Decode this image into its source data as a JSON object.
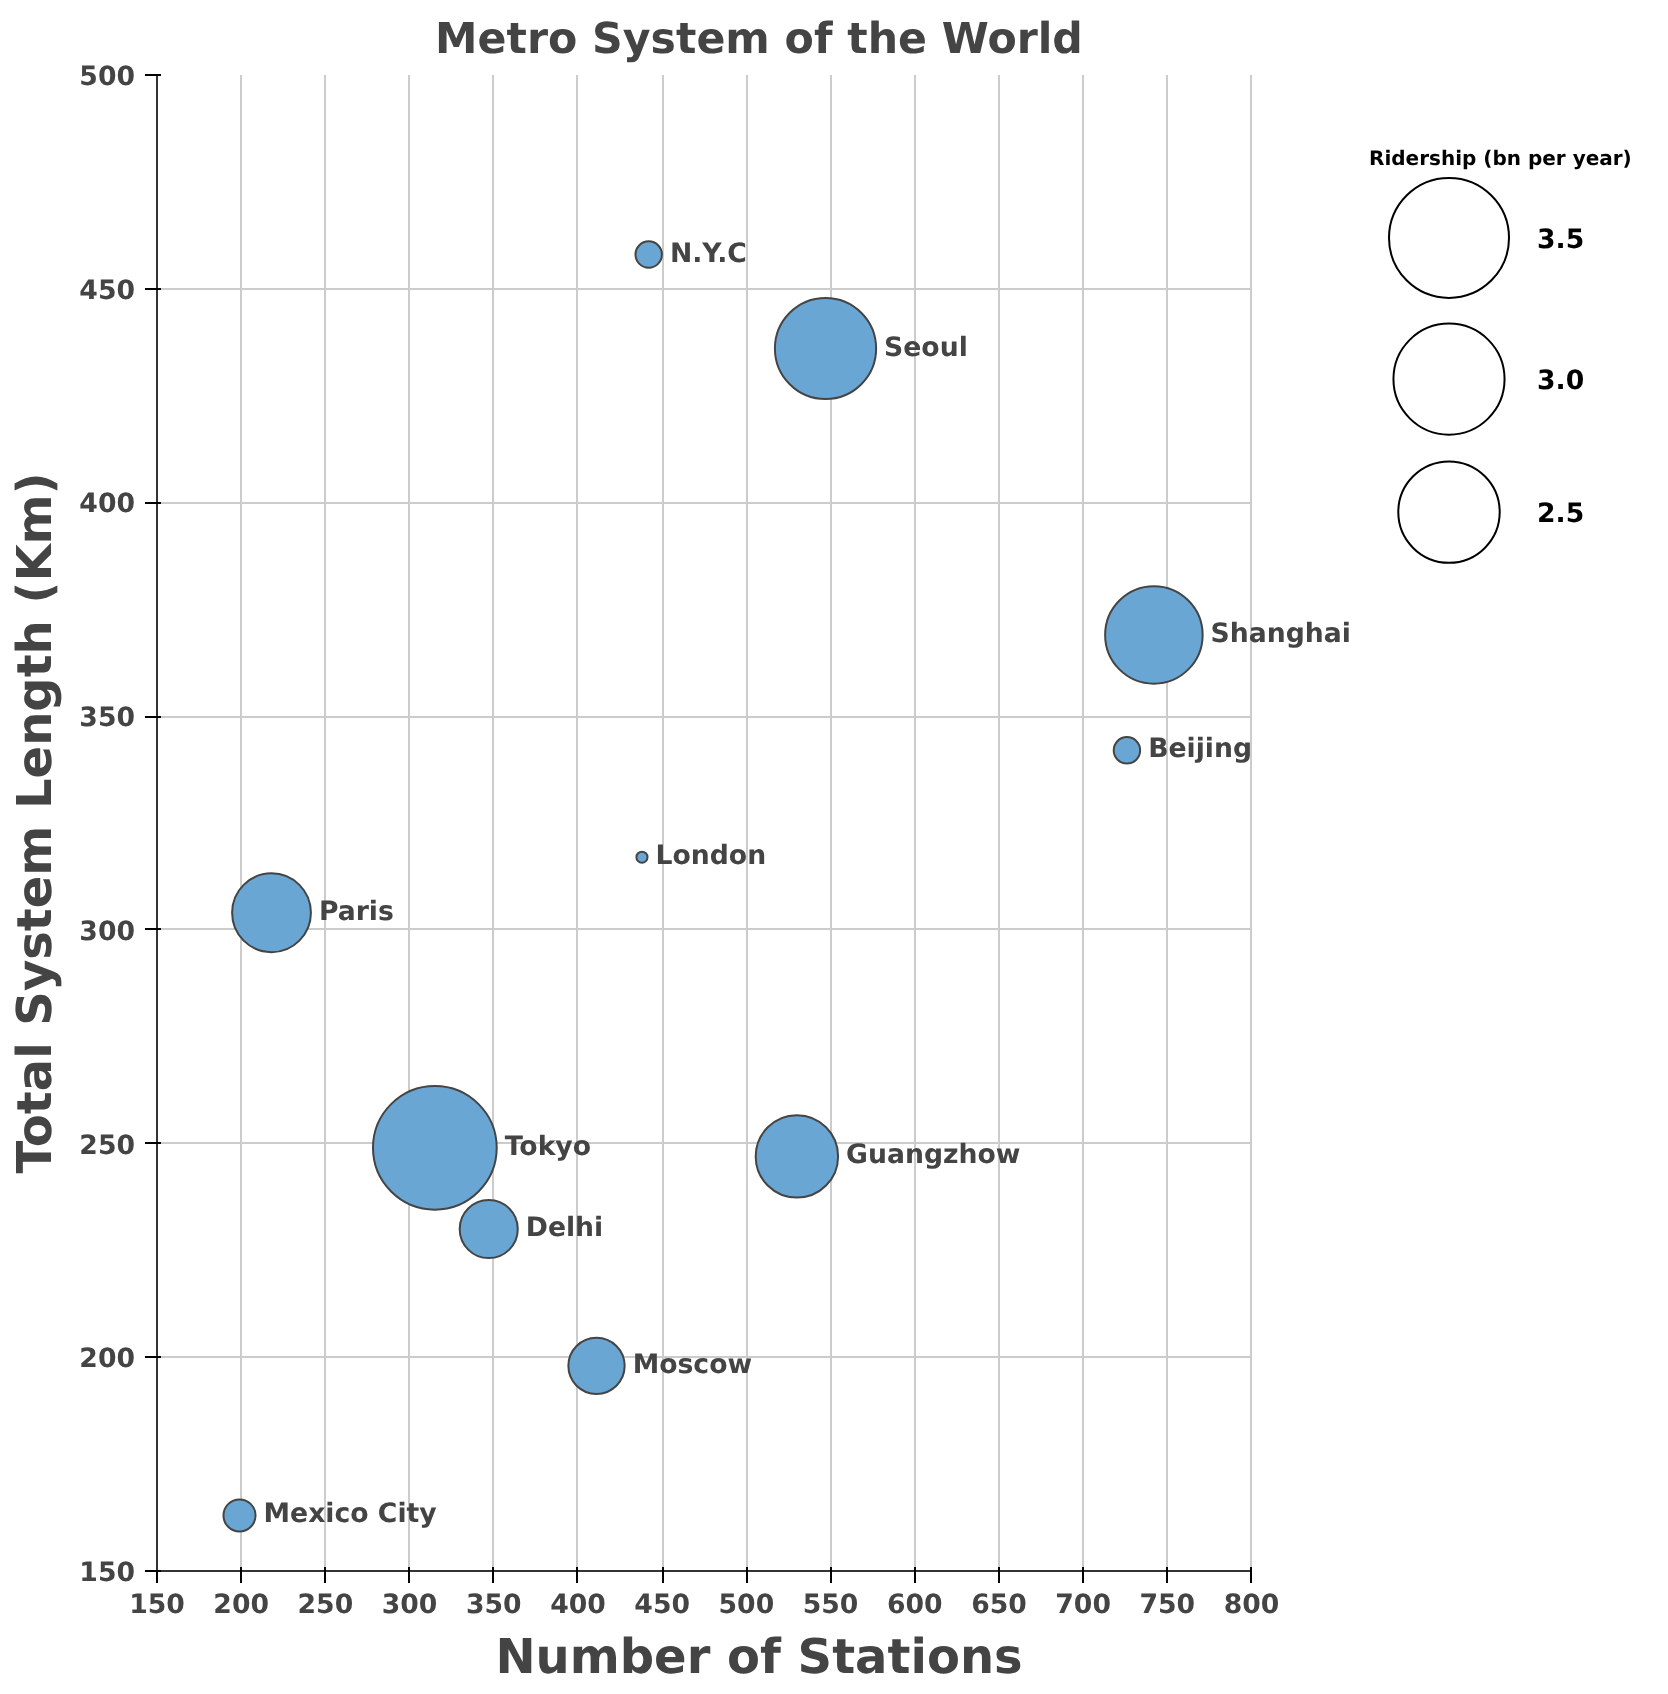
{
  "chart_data": {
    "type": "bubble",
    "title": "Metro System of the World",
    "xlabel": "Number of Stations",
    "ylabel": "Total System Length (Km)",
    "legend_title": "Ridership (bn per year)",
    "x": [
      442,
      547,
      742,
      726,
      438,
      218,
      315,
      530,
      347,
      411,
      199
    ],
    "values": [
      458,
      436,
      369,
      342,
      317,
      304,
      249,
      247,
      230,
      198,
      163
    ],
    "sizes": [
      0.17,
      2.49,
      2.31,
      0.17,
      0.03,
      1.51,
      3.72,
      1.65,
      0.82,
      0.77,
      0.25
    ],
    "size_legend": [
      3.5,
      {
        "value": 3,
        "label": "3.0"
      },
      2.5
    ],
    "annotations": [
      {
        "text": "N.Y.C",
        "x": 442,
        "y": 458
      },
      {
        "text": "Seoul",
        "x": 547,
        "y": 436
      },
      {
        "text": "Shanghai",
        "x": 742,
        "y": 369
      },
      {
        "text": "Beijing",
        "x": 726,
        "y": 342
      },
      {
        "text": "London",
        "x": 438,
        "y": 317
      },
      {
        "text": "Paris",
        "x": 218,
        "y": 304
      },
      {
        "text": "Tokyo",
        "x": 315,
        "y": 249
      },
      {
        "text": "Guangzhow",
        "x": 530,
        "y": 247
      },
      {
        "text": "Delhi",
        "x": 347,
        "y": 230
      },
      {
        "text": "Moscow",
        "x": 411,
        "y": 198
      },
      {
        "text": "Mexico City",
        "x": 199,
        "y": 163
      }
    ],
    "color": "#6aa6d3",
    "xlim": [
      150,
      800
    ],
    "ylim": [
      150,
      500
    ],
    "xticks": [
      150,
      200,
      250,
      300,
      350,
      400,
      450,
      500,
      550,
      600,
      650,
      700,
      750,
      800
    ],
    "yticks": [
      150,
      200,
      250,
      300,
      350,
      400,
      450,
      500
    ],
    "grid": true
  }
}
